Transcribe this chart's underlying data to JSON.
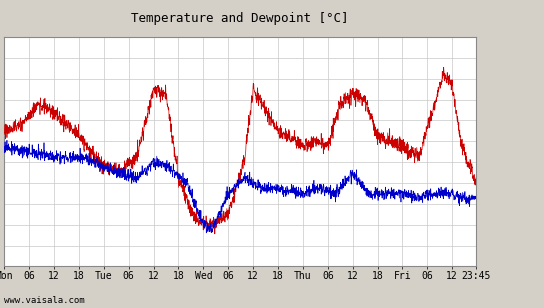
{
  "title": "Temperature and Dewpoint [°C]",
  "bg_color": "#d4d0c8",
  "plot_bg_color": "#ffffff",
  "grid_color": "#c8c8c8",
  "temp_color": "#cc0000",
  "dewp_color": "#0000cc",
  "ylim": [
    4,
    26
  ],
  "yticks": [
    4,
    6,
    8,
    10,
    12,
    14,
    16,
    18,
    20,
    22,
    24,
    26
  ],
  "xlabel_ticks": [
    "Mon",
    "06",
    "12",
    "18",
    "Tue",
    "06",
    "12",
    "18",
    "Wed",
    "06",
    "12",
    "18",
    "Thu",
    "06",
    "12",
    "18",
    "Fri",
    "06",
    "12",
    "23:45"
  ],
  "xtick_positions": [
    0,
    6,
    12,
    18,
    24,
    30,
    36,
    42,
    48,
    54,
    60,
    66,
    72,
    78,
    84,
    90,
    96,
    102,
    108,
    113.75
  ],
  "xlim": [
    0,
    113.75
  ],
  "watermark": "www.vaisala.com",
  "temp_ctrl_x": [
    0,
    4,
    8,
    10,
    14,
    18,
    24,
    28,
    32,
    36,
    39,
    42,
    46,
    48,
    50,
    54,
    58,
    60,
    66,
    72,
    75,
    78,
    81,
    84,
    87,
    90,
    96,
    100,
    103,
    106,
    108,
    110,
    113.75
  ],
  "temp_ctrl_y": [
    17.0,
    17.5,
    19.5,
    19.2,
    18.0,
    16.5,
    13.5,
    13.2,
    14.5,
    21.0,
    20.5,
    12.5,
    8.5,
    8.0,
    8.0,
    9.0,
    14.5,
    21.0,
    17.0,
    15.5,
    16.0,
    15.5,
    19.5,
    20.5,
    20.0,
    16.5,
    15.5,
    14.5,
    18.5,
    22.5,
    21.5,
    16.0,
    12.0
  ],
  "dewp_ctrl_x": [
    0,
    6,
    12,
    18,
    24,
    28,
    32,
    36,
    40,
    44,
    48,
    50,
    54,
    58,
    62,
    66,
    72,
    76,
    80,
    84,
    88,
    92,
    96,
    100,
    104,
    108,
    111,
    113.75
  ],
  "dewp_ctrl_y": [
    15.5,
    15.0,
    14.5,
    14.5,
    13.5,
    13.0,
    12.5,
    14.0,
    13.5,
    12.0,
    8.0,
    7.5,
    11.0,
    12.5,
    11.5,
    11.5,
    11.0,
    11.5,
    11.0,
    13.0,
    11.0,
    11.0,
    11.0,
    10.5,
    11.0,
    11.0,
    10.5,
    10.5
  ],
  "n_points": 2000,
  "noise_temp": 0.35,
  "noise_dewp": 0.28
}
